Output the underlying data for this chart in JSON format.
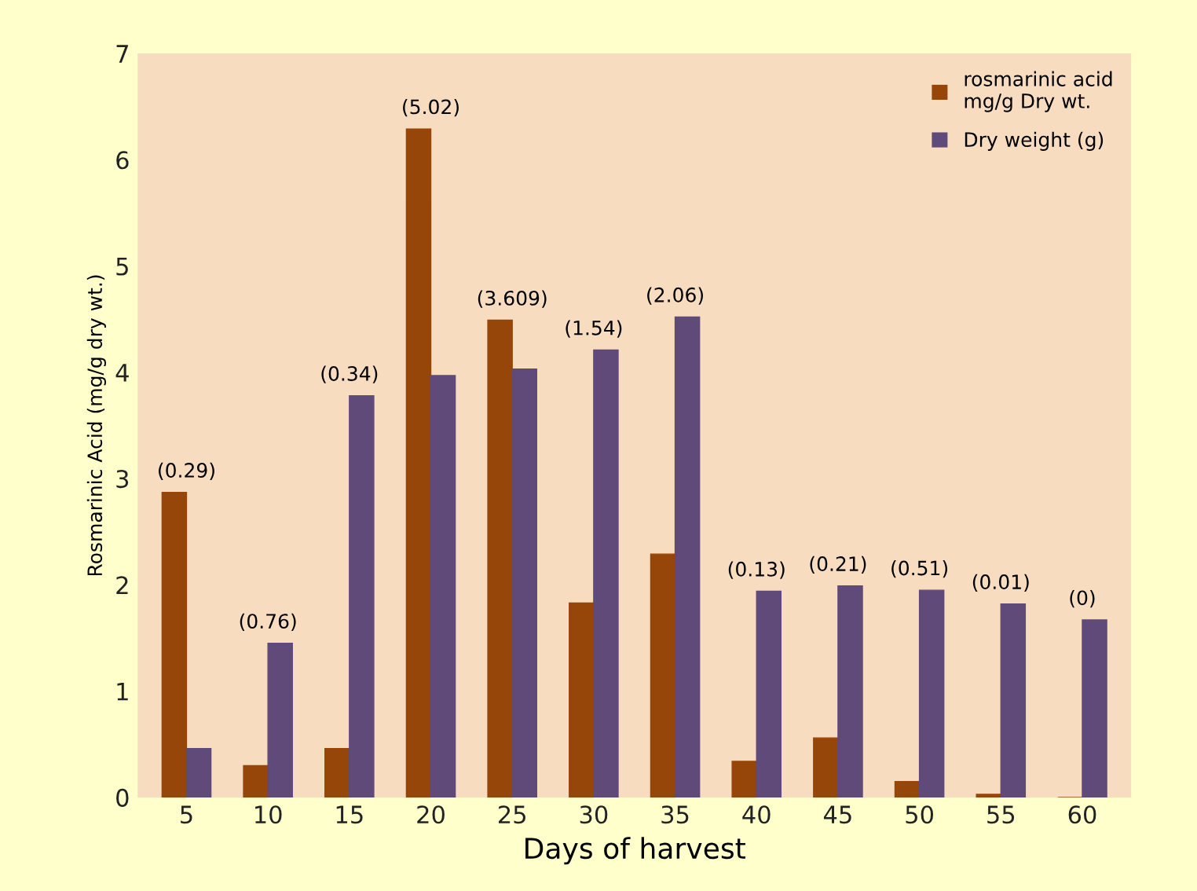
{
  "chart_data": {
    "type": "bar",
    "xlabel": "Days of harvest",
    "ylabel": "Rosmarinic Acid (mg/g dry wt.)",
    "categories": [
      "5",
      "10",
      "15",
      "20",
      "25",
      "30",
      "35",
      "40",
      "45",
      "50",
      "55",
      "60"
    ],
    "series": [
      {
        "name": "rosmarinic acid\nmg/g Dry wt.",
        "color": "#974609",
        "values": [
          2.87,
          0.3,
          0.46,
          6.29,
          4.49,
          1.83,
          2.29,
          0.34,
          0.56,
          0.15,
          0.03,
          0
        ]
      },
      {
        "name": "Dry weight (g)",
        "color": "#5f4a7a",
        "values": [
          0.46,
          1.45,
          3.78,
          3.97,
          4.03,
          4.21,
          4.52,
          1.94,
          1.99,
          1.95,
          1.82,
          1.67
        ]
      }
    ],
    "annotations": [
      {
        "text": "(0.29)",
        "x": "5",
        "y": 2.87
      },
      {
        "text": "(0.76)",
        "x": "10",
        "y": 1.45
      },
      {
        "text": "(0.34)",
        "x": "15",
        "y": 3.78
      },
      {
        "text": "(5.02)",
        "x": "20",
        "y": 6.29
      },
      {
        "text": "(3.609)",
        "x": "25",
        "y": 4.49
      },
      {
        "text": "(1.54)",
        "x": "30",
        "y": 4.21
      },
      {
        "text": "(2.06)",
        "x": "35",
        "y": 4.52
      },
      {
        "text": "(0.13)",
        "x": "40",
        "y": 1.94
      },
      {
        "text": "(0.21)",
        "x": "45",
        "y": 1.99
      },
      {
        "text": "(0.51)",
        "x": "50",
        "y": 1.95
      },
      {
        "text": "(0.01)",
        "x": "55",
        "y": 1.82
      },
      {
        "text": "(0)",
        "x": "60",
        "y": 1.67
      }
    ],
    "ylim": [
      0,
      7
    ],
    "yticks": [
      0,
      1,
      2,
      3,
      4,
      5,
      6,
      7
    ],
    "grid": false,
    "legend": "top right"
  }
}
